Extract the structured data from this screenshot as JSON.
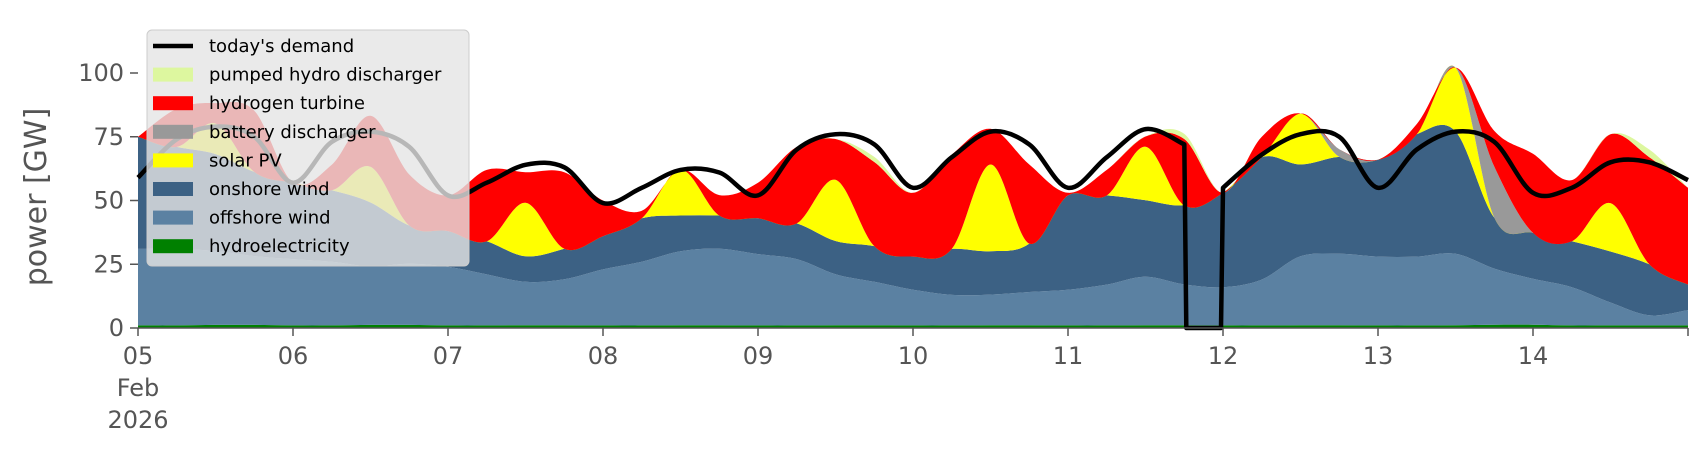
{
  "chart_data": {
    "type": "area",
    "stacked": true,
    "ylabel": "power [GW]",
    "ylim": [
      0,
      120
    ],
    "xlim_days": [
      "2026-02-05",
      "2026-02-15"
    ],
    "x_tick_labels": [
      "05",
      "06",
      "07",
      "08",
      "09",
      "10",
      "11",
      "12",
      "13",
      "14"
    ],
    "x_tick_sublabels": [
      "Feb",
      "2026"
    ],
    "y_ticks": [
      0,
      25,
      50,
      75,
      100
    ],
    "grid": false,
    "legend_position": "upper left",
    "x": [
      "2026-02-05 00:00",
      "2026-02-05 06:00",
      "2026-02-05 12:00",
      "2026-02-05 18:00",
      "2026-02-06 00:00",
      "2026-02-06 06:00",
      "2026-02-06 12:00",
      "2026-02-06 18:00",
      "2026-02-07 00:00",
      "2026-02-07 06:00",
      "2026-02-07 12:00",
      "2026-02-07 18:00",
      "2026-02-08 00:00",
      "2026-02-08 06:00",
      "2026-02-08 12:00",
      "2026-02-08 18:00",
      "2026-02-09 00:00",
      "2026-02-09 06:00",
      "2026-02-09 12:00",
      "2026-02-09 18:00",
      "2026-02-10 00:00",
      "2026-02-10 06:00",
      "2026-02-10 12:00",
      "2026-02-10 18:00",
      "2026-02-11 00:00",
      "2026-02-11 06:00",
      "2026-02-11 12:00",
      "2026-02-11 18:00",
      "2026-02-12 00:00",
      "2026-02-12 06:00",
      "2026-02-12 12:00",
      "2026-02-12 18:00",
      "2026-02-13 00:00",
      "2026-02-13 06:00",
      "2026-02-13 12:00",
      "2026-02-13 18:00",
      "2026-02-14 00:00",
      "2026-02-14 06:00",
      "2026-02-14 12:00",
      "2026-02-14 18:00",
      "2026-02-15 00:00"
    ],
    "series": [
      {
        "name": "hydroelectricity",
        "color": "#008000",
        "values": [
          1.0,
          1.0,
          1.2,
          1.2,
          1.0,
          1.0,
          1.2,
          1.2,
          1.0,
          1.0,
          1.1,
          1.1,
          1.0,
          1.0,
          1.1,
          1.1,
          1.0,
          1.0,
          1.1,
          1.1,
          1.0,
          1.0,
          1.1,
          1.1,
          1.0,
          1.0,
          1.1,
          1.1,
          1.0,
          1.0,
          1.1,
          1.1,
          1.0,
          1.0,
          1.1,
          1.3,
          1.3,
          1.0,
          1.0,
          1.0,
          1.0
        ]
      },
      {
        "name": "offshore wind",
        "color": "#5b81a2",
        "values": [
          30,
          30,
          29,
          27,
          26,
          25,
          23,
          24,
          23,
          20,
          17,
          18,
          22,
          25,
          29,
          30,
          28,
          26,
          20,
          17,
          14,
          12,
          12,
          13,
          14,
          16,
          19,
          16,
          15,
          18,
          27,
          28,
          27,
          27,
          28,
          22,
          18,
          15,
          9,
          4,
          6
        ]
      },
      {
        "name": "onshore wind",
        "color": "#3c6184",
        "values": [
          44,
          40,
          38,
          33,
          30,
          28,
          25,
          15,
          14,
          13,
          10,
          12,
          13,
          17,
          14,
          13,
          14,
          14,
          13,
          14,
          13,
          18,
          17,
          19,
          37,
          35,
          30,
          31,
          37,
          48,
          36,
          38,
          38,
          48,
          48,
          20,
          18,
          18,
          20,
          20,
          10
        ]
      },
      {
        "name": "solar PV",
        "color": "#ffff00",
        "values": [
          0,
          0,
          12,
          0,
          0,
          0,
          14,
          0,
          0,
          0,
          21,
          0,
          0,
          0,
          18,
          0,
          0,
          0,
          24,
          0,
          0,
          0,
          34,
          0,
          0,
          0,
          21,
          0,
          0,
          0,
          20,
          0,
          0,
          0,
          25,
          0,
          0,
          0,
          19,
          0,
          0
        ]
      },
      {
        "name": "battery discharger",
        "color": "#999999",
        "values": [
          0,
          0,
          0,
          0,
          0,
          0,
          0,
          0,
          0,
          0,
          0,
          0,
          0,
          0,
          0,
          0,
          0,
          0,
          0,
          0,
          0,
          0,
          0,
          0,
          0,
          0,
          0,
          0,
          0,
          0,
          0,
          3,
          0,
          0,
          0,
          20,
          0,
          0,
          0,
          0,
          0
        ]
      },
      {
        "name": "hydrogen turbine",
        "color": "#ff0000",
        "values": [
          0,
          15,
          8,
          24,
          0,
          10,
          20,
          20,
          14,
          28,
          12,
          30,
          14,
          3,
          0,
          8,
          14,
          30,
          16,
          33,
          25,
          37,
          14,
          31,
          1,
          10,
          4,
          26,
          0,
          8,
          0,
          0,
          0,
          4,
          0,
          14,
          31,
          24,
          27,
          42,
          38
        ]
      },
      {
        "name": "pumped hydro discharger",
        "color": "#ddf79f",
        "values": [
          0,
          0,
          0,
          0,
          0,
          0,
          0,
          0,
          0,
          0,
          0,
          0,
          0,
          0,
          0,
          0,
          0,
          0,
          0,
          2,
          0,
          0,
          0,
          0,
          0,
          0,
          0,
          2,
          0,
          0,
          0,
          0,
          0,
          0,
          0,
          0,
          0,
          0,
          0,
          3,
          0
        ]
      }
    ],
    "demand": {
      "name": "today's demand",
      "color": "#000000",
      "values": [
        59,
        74,
        79,
        75,
        57,
        73,
        77,
        71,
        52,
        57,
        64,
        63,
        49,
        55,
        62,
        61,
        52,
        70,
        76,
        72,
        55,
        67,
        77,
        72,
        55,
        67,
        78,
        72,
        55,
        68,
        76,
        75,
        55,
        70,
        77,
        73,
        53,
        55,
        65,
        65,
        58
      ],
      "gap_from": "2026-02-11 18:00",
      "gap_to": "2026-02-12 00:00"
    },
    "legend": [
      {
        "label": "today's demand",
        "color": "#000000",
        "kind": "line"
      },
      {
        "label": "pumped hydro discharger",
        "color": "#ddf79f",
        "kind": "patch"
      },
      {
        "label": "hydrogen turbine",
        "color": "#ff0000",
        "kind": "patch"
      },
      {
        "label": "battery discharger",
        "color": "#999999",
        "kind": "patch"
      },
      {
        "label": "solar PV",
        "color": "#ffff00",
        "kind": "patch"
      },
      {
        "label": "onshore wind",
        "color": "#3c6184",
        "kind": "patch"
      },
      {
        "label": "offshore wind",
        "color": "#5b81a2",
        "kind": "patch"
      },
      {
        "label": "hydroelectricity",
        "color": "#008000",
        "kind": "patch"
      }
    ]
  }
}
